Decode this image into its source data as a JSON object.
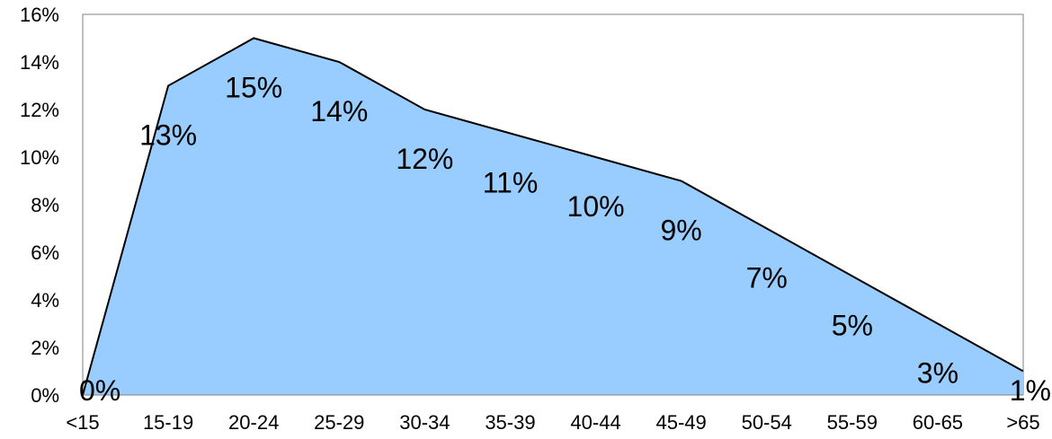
{
  "chart_data": {
    "type": "area",
    "categories": [
      "<15",
      "15-19",
      "20-24",
      "25-29",
      "30-34",
      "35-39",
      "40-44",
      "45-49",
      "50-54",
      "55-59",
      "60-65",
      ">65"
    ],
    "values": [
      0,
      13,
      15,
      14,
      12,
      11,
      10,
      9,
      7,
      5,
      3,
      1
    ],
    "data_labels": [
      "0%",
      "13%",
      "15%",
      "14%",
      "12%",
      "11%",
      "10%",
      "9%",
      "7%",
      "5%",
      "3%",
      "1%"
    ],
    "y_ticks": [
      0,
      2,
      4,
      6,
      8,
      10,
      12,
      14,
      16
    ],
    "y_tick_labels": [
      "0%",
      "2%",
      "4%",
      "6%",
      "8%",
      "10%",
      "12%",
      "14%",
      "16%"
    ],
    "ylim": [
      0,
      16
    ],
    "title": "",
    "xlabel": "",
    "ylabel": "",
    "grid": false,
    "legend": "none",
    "fill_color": "#99ccff",
    "line_color": "#000000",
    "frame_color": "#808080"
  }
}
